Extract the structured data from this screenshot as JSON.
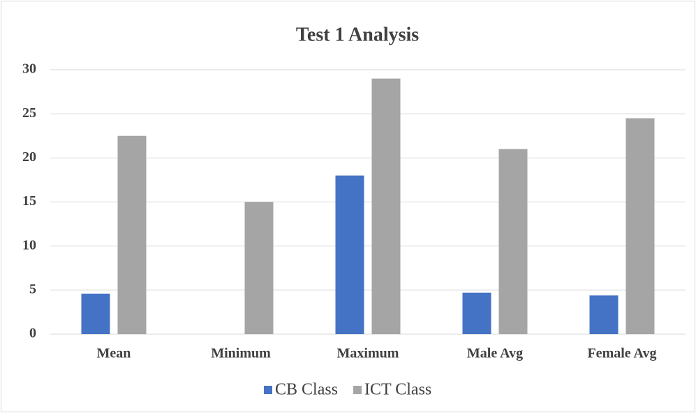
{
  "chart_data": {
    "type": "bar",
    "title": "Test 1 Analysis",
    "categories": [
      "Mean",
      "Minimum",
      "Maximum",
      "Male Avg",
      "Female Avg"
    ],
    "series": [
      {
        "name": "CB Class",
        "color": "#4472c4",
        "values": [
          4.6,
          0,
          18,
          4.7,
          4.4
        ]
      },
      {
        "name": "ICT Class",
        "color": "#a5a5a5",
        "values": [
          22.5,
          15,
          29,
          21,
          24.5
        ]
      }
    ],
    "ylim": [
      0,
      30
    ],
    "yticks": [
      0,
      5,
      10,
      15,
      20,
      25,
      30
    ],
    "grid": true,
    "legend": "bottom"
  }
}
